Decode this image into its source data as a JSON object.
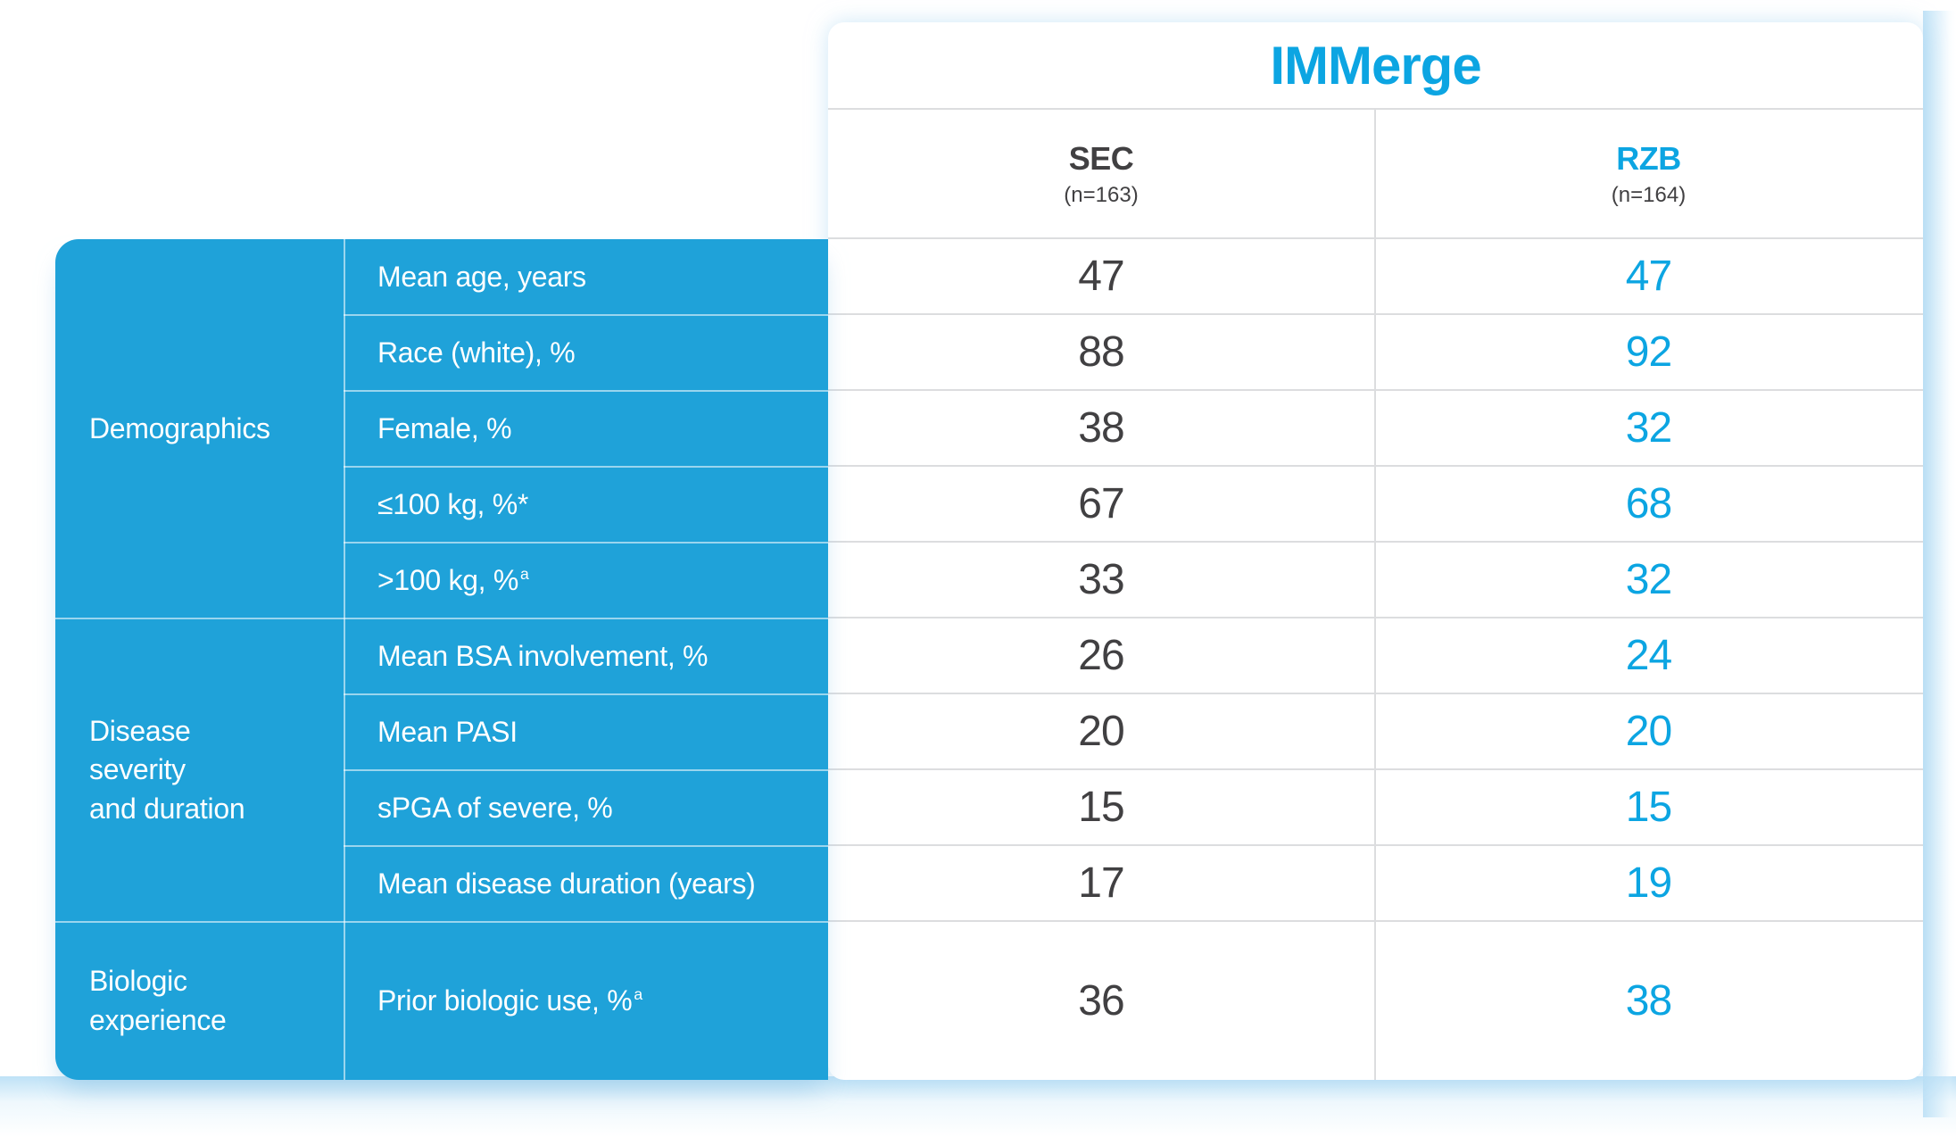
{
  "title": "IMMerge",
  "columns": [
    {
      "id": "sec",
      "label": "SEC",
      "n_label": "(n=163)",
      "color": "#414042"
    },
    {
      "id": "rzb",
      "label": "RZB",
      "n_label": "(n=164)",
      "color": "#0CA5E2"
    }
  ],
  "groups": [
    {
      "label": "Demographics",
      "label_lines": [
        "Demographics"
      ],
      "rows": [
        {
          "label": "Mean age, years",
          "sup": "",
          "sec": "47",
          "rzb": "47"
        },
        {
          "label": "Race (white), %",
          "sup": "",
          "sec": "88",
          "rzb": "92"
        },
        {
          "label": "Female, %",
          "sup": "",
          "sec": "38",
          "rzb": "32"
        },
        {
          "label": "≤100 kg, %*",
          "sup": "",
          "sec": "67",
          "rzb": "68"
        },
        {
          "label": ">100 kg, %",
          "sup": "a",
          "sec": "33",
          "rzb": "32"
        }
      ]
    },
    {
      "label": "Disease severity and duration",
      "label_lines": [
        "Disease",
        "severity",
        "and duration"
      ],
      "rows": [
        {
          "label": "Mean BSA involvement, %",
          "sup": "",
          "sec": "26",
          "rzb": "24"
        },
        {
          "label": "Mean PASI",
          "sup": "",
          "sec": "20",
          "rzb": "20"
        },
        {
          "label": "sPGA of severe, %",
          "sup": "",
          "sec": "15",
          "rzb": "15"
        },
        {
          "label": "Mean disease duration (years)",
          "sup": "",
          "sec": "17",
          "rzb": "19"
        }
      ]
    },
    {
      "label": "Biologic experience",
      "label_lines": [
        "Biologic",
        "experience"
      ],
      "rows": [
        {
          "label": "Prior biologic use, %",
          "sup": "a",
          "sec": "36",
          "rzb": "38"
        }
      ]
    }
  ],
  "colors": {
    "panel_blue": "#1FA2D9",
    "accent_blue": "#0CA5E2",
    "dark_text": "#414042",
    "grid_gray": "#DCDDDF"
  },
  "chart_data": {
    "type": "table",
    "title": "IMMerge",
    "columns": [
      "SEC (n=163)",
      "RZB (n=164)"
    ],
    "row_groups": [
      {
        "group": "Demographics",
        "rows": [
          {
            "label": "Mean age, years",
            "SEC": 47,
            "RZB": 47
          },
          {
            "label": "Race (white), %",
            "SEC": 88,
            "RZB": 92
          },
          {
            "label": "Female, %",
            "SEC": 38,
            "RZB": 32
          },
          {
            "label": "≤100 kg, %*",
            "SEC": 67,
            "RZB": 68
          },
          {
            "label": ">100 kg, %a",
            "SEC": 33,
            "RZB": 32
          }
        ]
      },
      {
        "group": "Disease severity and duration",
        "rows": [
          {
            "label": "Mean BSA involvement, %",
            "SEC": 26,
            "RZB": 24
          },
          {
            "label": "Mean PASI",
            "SEC": 20,
            "RZB": 20
          },
          {
            "label": "sPGA of severe, %",
            "SEC": 15,
            "RZB": 15
          },
          {
            "label": "Mean disease duration (years)",
            "SEC": 17,
            "RZB": 19
          }
        ]
      },
      {
        "group": "Biologic experience",
        "rows": [
          {
            "label": "Prior biologic use, %a",
            "SEC": 36,
            "RZB": 38
          }
        ]
      }
    ]
  }
}
